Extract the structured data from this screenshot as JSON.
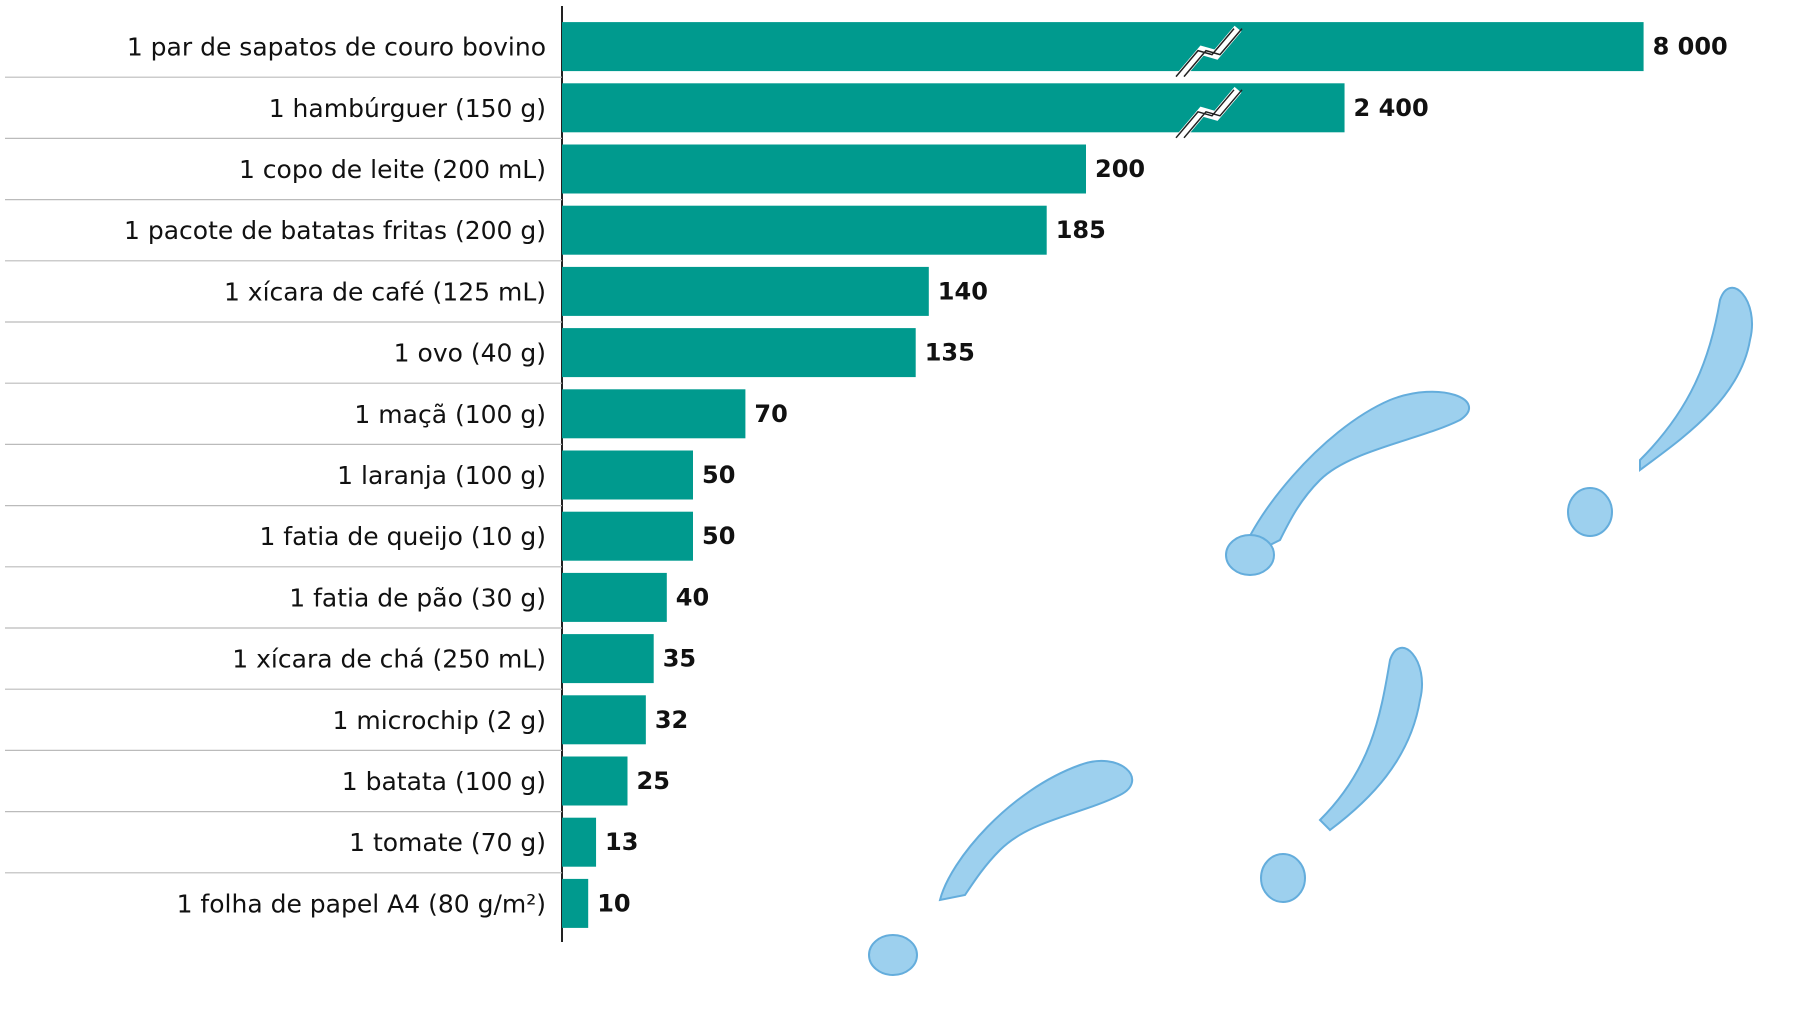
{
  "chart_data": {
    "type": "bar",
    "orientation": "horizontal",
    "color": "#009a8e",
    "categories": [
      "1 par de sapatos de couro bovino",
      "1 hambúrguer (150 g)",
      "1 copo de leite (200 mL)",
      "1 pacote de batatas fritas (200 g)",
      "1 xícara de café (125 mL)",
      "1 ovo (40 g)",
      "1 maçã (100 g)",
      "1 laranja (100 g)",
      "1 fatia de queijo (10 g)",
      "1 fatia de pão (30 g)",
      "1 xícara de chá (250 mL)",
      "1 microchip (2 g)",
      "1 batata (100 g)",
      "1 tomate (70 g)",
      "1 folha de papel A4 (80 g/m²)"
    ],
    "values": [
      8000,
      2400,
      200,
      185,
      140,
      135,
      70,
      50,
      50,
      40,
      35,
      32,
      25,
      13,
      10
    ],
    "value_labels": [
      "8 000",
      "2 400",
      "200",
      "185",
      "140",
      "135",
      "70",
      "50",
      "50",
      "40",
      "35",
      "32",
      "25",
      "13",
      "10"
    ]
  }
}
